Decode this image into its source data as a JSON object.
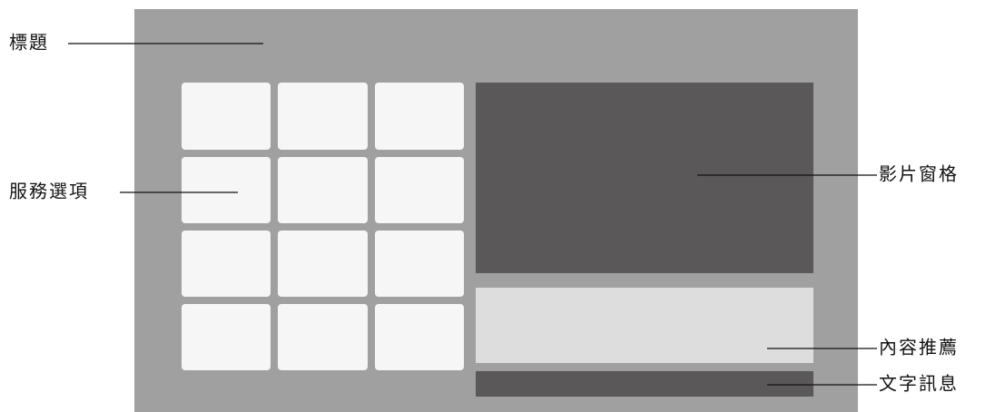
{
  "labels": {
    "title": "標題",
    "services": "服務選項",
    "video": "影片窗格",
    "recommend": "內容推薦",
    "message": "文字訊息"
  }
}
